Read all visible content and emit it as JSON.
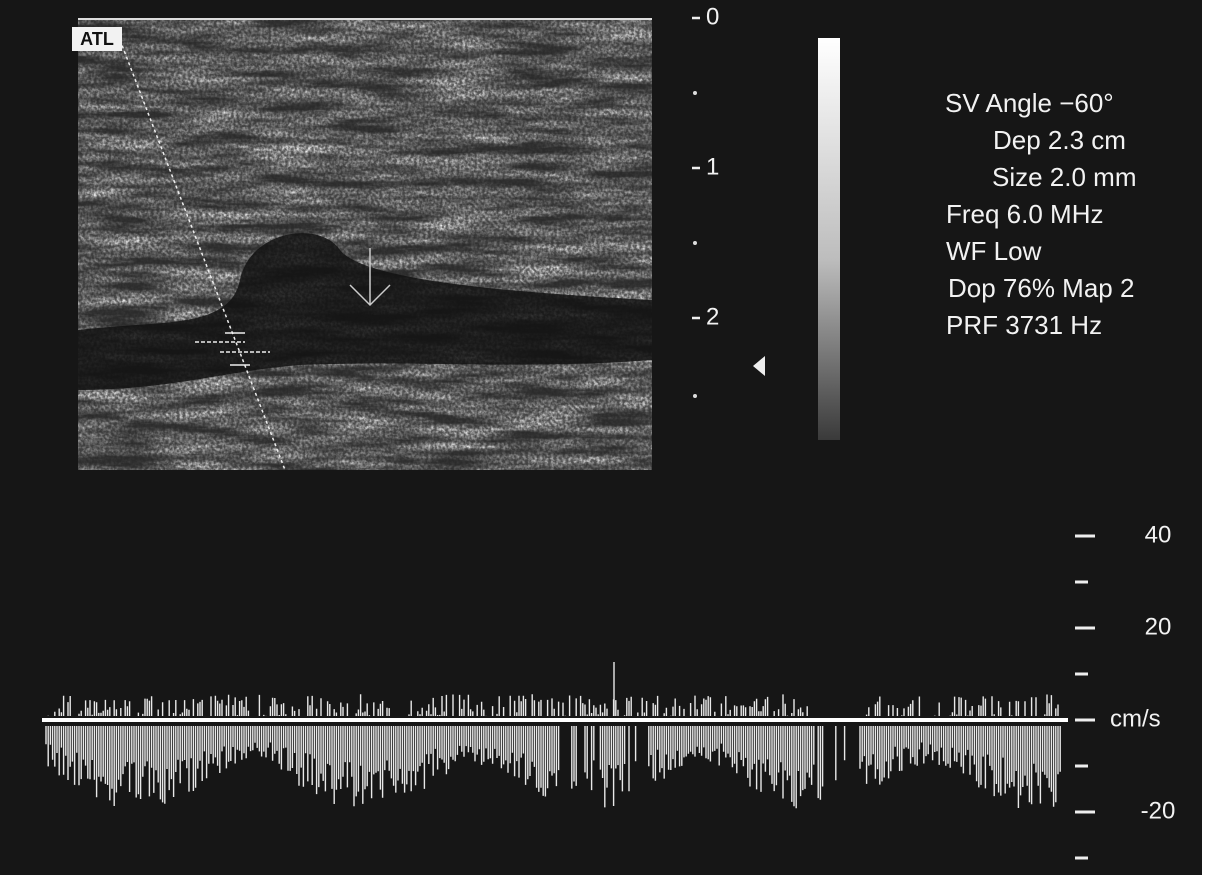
{
  "logo": "ATL",
  "depth_scale": {
    "ticks": [
      0,
      1,
      2
    ]
  },
  "settings": [
    "SV Angle −60°",
    "Dep 2.3  cm",
    "Size 2.0  mm",
    "Freq 6.0  MHz",
    "WF Low",
    "Dop 76%  Map 2",
    "PRF 3731  Hz"
  ],
  "velocity_scale": {
    "ticks": [
      40,
      20,
      -20
    ],
    "unit": "cm/s"
  }
}
